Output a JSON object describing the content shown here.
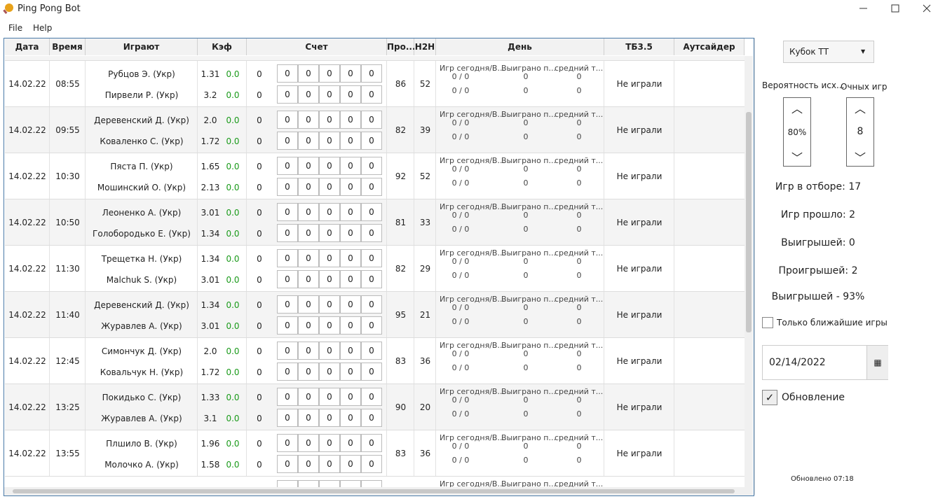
{
  "window": {
    "title": "Ping Pong Bot"
  },
  "menu": [
    "File",
    "Help"
  ],
  "table": {
    "columns": [
      "Дата",
      "Время",
      "Играют",
      "Кэф",
      "Счет",
      "Про...",
      "H2H",
      "День",
      "ТБ3.5",
      "Аутсайдер"
    ],
    "rows": [
      {
        "date": "14.02.22",
        "time": "08:55",
        "pro": "86",
        "h2h": "52",
        "tb": "Не играли",
        "players": [
          {
            "name": "Рубцов Э. (Укр)",
            "odds": "1.31",
            "delta": "0.0",
            "score": "0",
            "sets": [
              "0",
              "0",
              "0",
              "0",
              "0"
            ]
          },
          {
            "name": "Пирвели Р. (Укр)",
            "odds": "3.2",
            "delta": "0.0",
            "score": "0",
            "sets": [
              "0",
              "0",
              "0",
              "0",
              "0"
            ]
          }
        ],
        "day": {
          "labels": [
            "Игр сегодня/В...",
            "Выиграно п...",
            "средний т..."
          ],
          "values": [
            [
              "0 / 0",
              "0",
              "0"
            ],
            [
              "0 / 0",
              "0",
              "0"
            ]
          ]
        }
      },
      {
        "date": "14.02.22",
        "time": "09:55",
        "pro": "82",
        "h2h": "39",
        "tb": "Не играли",
        "players": [
          {
            "name": "Деревенский Д. (Укр)",
            "odds": "2.0",
            "delta": "0.0",
            "score": "0",
            "sets": [
              "0",
              "0",
              "0",
              "0",
              "0"
            ]
          },
          {
            "name": "Коваленко С. (Укр)",
            "odds": "1.72",
            "delta": "0.0",
            "score": "0",
            "sets": [
              "0",
              "0",
              "0",
              "0",
              "0"
            ]
          }
        ],
        "day": {
          "labels": [
            "Игр сегодня/В...",
            "Выиграно п...",
            "средний т..."
          ],
          "values": [
            [
              "0 / 0",
              "0",
              "0"
            ],
            [
              "0 / 0",
              "0",
              "0"
            ]
          ]
        }
      },
      {
        "date": "14.02.22",
        "time": "10:30",
        "pro": "92",
        "h2h": "52",
        "tb": "Не играли",
        "players": [
          {
            "name": "Пяста П. (Укр)",
            "odds": "1.65",
            "delta": "0.0",
            "score": "0",
            "sets": [
              "0",
              "0",
              "0",
              "0",
              "0"
            ]
          },
          {
            "name": "Мошинский О. (Укр)",
            "odds": "2.13",
            "delta": "0.0",
            "score": "0",
            "sets": [
              "0",
              "0",
              "0",
              "0",
              "0"
            ]
          }
        ],
        "day": {
          "labels": [
            "Игр сегодня/В...",
            "Выиграно п...",
            "средний т..."
          ],
          "values": [
            [
              "0 / 0",
              "0",
              "0"
            ],
            [
              "0 / 0",
              "0",
              "0"
            ]
          ]
        }
      },
      {
        "date": "14.02.22",
        "time": "10:50",
        "pro": "81",
        "h2h": "33",
        "tb": "Не играли",
        "players": [
          {
            "name": "Леоненко А. (Укр)",
            "odds": "3.01",
            "delta": "0.0",
            "score": "0",
            "sets": [
              "0",
              "0",
              "0",
              "0",
              "0"
            ]
          },
          {
            "name": "Голобородько Е. (Укр)",
            "odds": "1.34",
            "delta": "0.0",
            "score": "0",
            "sets": [
              "0",
              "0",
              "0",
              "0",
              "0"
            ]
          }
        ],
        "day": {
          "labels": [
            "Игр сегодня/В...",
            "Выиграно п...",
            "средний т..."
          ],
          "values": [
            [
              "0 / 0",
              "0",
              "0"
            ],
            [
              "0 / 0",
              "0",
              "0"
            ]
          ]
        }
      },
      {
        "date": "14.02.22",
        "time": "11:30",
        "pro": "82",
        "h2h": "29",
        "tb": "Не играли",
        "players": [
          {
            "name": "Трещетка Н. (Укр)",
            "odds": "1.34",
            "delta": "0.0",
            "score": "0",
            "sets": [
              "0",
              "0",
              "0",
              "0",
              "0"
            ]
          },
          {
            "name": "Malchuk S. (Укр)",
            "odds": "3.01",
            "delta": "0.0",
            "score": "0",
            "sets": [
              "0",
              "0",
              "0",
              "0",
              "0"
            ]
          }
        ],
        "day": {
          "labels": [
            "Игр сегодня/В...",
            "Выиграно п...",
            "средний т..."
          ],
          "values": [
            [
              "0 / 0",
              "0",
              "0"
            ],
            [
              "0 / 0",
              "0",
              "0"
            ]
          ]
        }
      },
      {
        "date": "14.02.22",
        "time": "11:40",
        "pro": "95",
        "h2h": "21",
        "tb": "Не играли",
        "players": [
          {
            "name": "Деревенский Д. (Укр)",
            "odds": "1.34",
            "delta": "0.0",
            "score": "0",
            "sets": [
              "0",
              "0",
              "0",
              "0",
              "0"
            ]
          },
          {
            "name": "Журавлев А. (Укр)",
            "odds": "3.01",
            "delta": "0.0",
            "score": "0",
            "sets": [
              "0",
              "0",
              "0",
              "0",
              "0"
            ]
          }
        ],
        "day": {
          "labels": [
            "Игр сегодня/В...",
            "Выиграно п...",
            "средний т..."
          ],
          "values": [
            [
              "0 / 0",
              "0",
              "0"
            ],
            [
              "0 / 0",
              "0",
              "0"
            ]
          ]
        }
      },
      {
        "date": "14.02.22",
        "time": "12:45",
        "pro": "83",
        "h2h": "36",
        "tb": "Не играли",
        "players": [
          {
            "name": "Симончук Д. (Укр)",
            "odds": "2.0",
            "delta": "0.0",
            "score": "0",
            "sets": [
              "0",
              "0",
              "0",
              "0",
              "0"
            ]
          },
          {
            "name": "Ковальчук Н. (Укр)",
            "odds": "1.72",
            "delta": "0.0",
            "score": "0",
            "sets": [
              "0",
              "0",
              "0",
              "0",
              "0"
            ]
          }
        ],
        "day": {
          "labels": [
            "Игр сегодня/В...",
            "Выиграно п...",
            "средний т..."
          ],
          "values": [
            [
              "0 / 0",
              "0",
              "0"
            ],
            [
              "0 / 0",
              "0",
              "0"
            ]
          ]
        }
      },
      {
        "date": "14.02.22",
        "time": "13:25",
        "pro": "90",
        "h2h": "20",
        "tb": "Не играли",
        "players": [
          {
            "name": "Покидько С. (Укр)",
            "odds": "1.33",
            "delta": "0.0",
            "score": "0",
            "sets": [
              "0",
              "0",
              "0",
              "0",
              "0"
            ]
          },
          {
            "name": "Журавлев А. (Укр)",
            "odds": "3.1",
            "delta": "0.0",
            "score": "0",
            "sets": [
              "0",
              "0",
              "0",
              "0",
              "0"
            ]
          }
        ],
        "day": {
          "labels": [
            "Игр сегодня/В...",
            "Выиграно п...",
            "средний т..."
          ],
          "values": [
            [
              "0 / 0",
              "0",
              "0"
            ],
            [
              "0 / 0",
              "0",
              "0"
            ]
          ]
        }
      },
      {
        "date": "14.02.22",
        "time": "13:55",
        "pro": "83",
        "h2h": "36",
        "tb": "Не играли",
        "players": [
          {
            "name": "Плшило В. (Укр)",
            "odds": "1.96",
            "delta": "0.0",
            "score": "0",
            "sets": [
              "0",
              "0",
              "0",
              "0",
              "0"
            ]
          },
          {
            "name": "Молочко А. (Укр)",
            "odds": "1.58",
            "delta": "0.0",
            "score": "0",
            "sets": [
              "0",
              "0",
              "0",
              "0",
              "0"
            ]
          }
        ],
        "day": {
          "labels": [
            "Игр сегодня/В...",
            "Выиграно п...",
            "средний т..."
          ],
          "values": [
            [
              "0 / 0",
              "0",
              "0"
            ],
            [
              "0 / 0",
              "0",
              "0"
            ]
          ]
        }
      }
    ],
    "partial_row": {
      "day_labels": [
        "Игр сегодня/В...",
        "Выиграно п...",
        "средний т..."
      ]
    }
  },
  "sidebar": {
    "tournament": "Кубок ТТ",
    "probability": {
      "label": "Вероятность исх...",
      "value": "80%"
    },
    "h2h_games": {
      "label": "Очных игр",
      "value": "8"
    },
    "stats": [
      "Игр в отборе: 17",
      "Игр прошло: 2",
      "Выигрышей: 0",
      "Проигрышей: 2",
      "Выигрышей - 93%"
    ],
    "nearest_only": "Только ближайшие игры",
    "date": "02/14/2022",
    "update": "Обновление",
    "updated_at": "Обновлено 07:18"
  }
}
